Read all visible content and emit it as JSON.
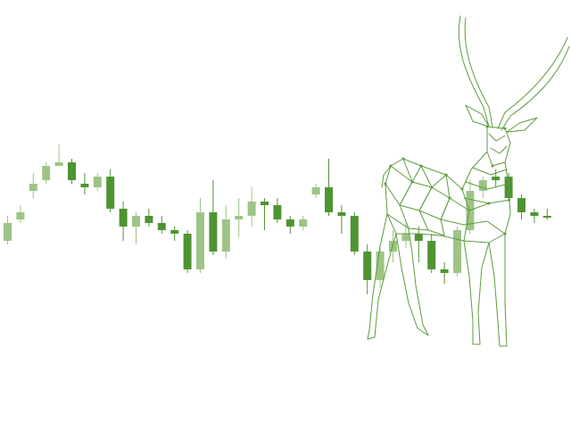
{
  "colors": {
    "background": "#ffffff",
    "dark_green": "#4f9433",
    "light_green": "#9dc486",
    "line_green": "#5c9c3c"
  },
  "illustration": {
    "icon": "antelope-wireframe-icon"
  },
  "chart_data": {
    "type": "candlestick",
    "title": "",
    "xlabel": "",
    "ylabel": "",
    "ylim": [
      0,
      100
    ],
    "grid": false,
    "legend": "none",
    "series": [
      {
        "candles": [
          {
            "o": 50,
            "c": 45,
            "h": 52,
            "l": 44,
            "style": "light"
          },
          {
            "o": 53,
            "c": 51,
            "h": 55,
            "l": 50,
            "style": "light"
          },
          {
            "o": 59,
            "c": 61,
            "h": 64,
            "l": 57,
            "style": "light"
          },
          {
            "o": 62,
            "c": 66,
            "h": 67,
            "l": 61,
            "style": "light"
          },
          {
            "o": 66,
            "c": 67,
            "h": 72,
            "l": 66,
            "style": "light"
          },
          {
            "o": 67,
            "c": 62,
            "h": 68,
            "l": 61,
            "style": "dark"
          },
          {
            "o": 61,
            "c": 60,
            "h": 64,
            "l": 58,
            "style": "dark"
          },
          {
            "o": 60,
            "c": 63,
            "h": 64,
            "l": 59,
            "style": "light"
          },
          {
            "o": 63,
            "c": 54,
            "h": 65,
            "l": 53,
            "style": "dark"
          },
          {
            "o": 54,
            "c": 49,
            "h": 56,
            "l": 45,
            "style": "dark"
          },
          {
            "o": 49,
            "c": 52,
            "h": 53,
            "l": 44,
            "style": "light"
          },
          {
            "o": 52,
            "c": 50,
            "h": 54,
            "l": 49,
            "style": "dark"
          },
          {
            "o": 50,
            "c": 48,
            "h": 52,
            "l": 47,
            "style": "dark"
          },
          {
            "o": 48,
            "c": 47,
            "h": 49,
            "l": 45,
            "style": "dark"
          },
          {
            "o": 47,
            "c": 37,
            "h": 48,
            "l": 36,
            "style": "dark"
          },
          {
            "o": 37,
            "c": 53,
            "h": 57,
            "l": 36,
            "style": "light"
          },
          {
            "o": 53,
            "c": 42,
            "h": 62,
            "l": 41,
            "style": "dark"
          },
          {
            "o": 42,
            "c": 51,
            "h": 55,
            "l": 40,
            "style": "light"
          },
          {
            "o": 51,
            "c": 52,
            "h": 57,
            "l": 46,
            "style": "light"
          },
          {
            "o": 52,
            "c": 56,
            "h": 60,
            "l": 49,
            "style": "light"
          },
          {
            "o": 56,
            "c": 55,
            "h": 57,
            "l": 48,
            "style": "dark"
          },
          {
            "o": 55,
            "c": 51,
            "h": 57,
            "l": 50,
            "style": "dark"
          },
          {
            "o": 51,
            "c": 49,
            "h": 52,
            "l": 47,
            "style": "dark"
          },
          {
            "o": 49,
            "c": 51,
            "h": 52,
            "l": 48,
            "style": "light"
          },
          {
            "o": 58,
            "c": 60,
            "h": 61,
            "l": 57,
            "style": "light"
          },
          {
            "o": 60,
            "c": 53,
            "h": 68,
            "l": 52,
            "style": "dark"
          },
          {
            "o": 53,
            "c": 52,
            "h": 55,
            "l": 47,
            "style": "dark"
          },
          {
            "o": 52,
            "c": 42,
            "h": 53,
            "l": 41,
            "style": "dark"
          },
          {
            "o": 42,
            "c": 34,
            "h": 44,
            "l": 30,
            "style": "dark"
          },
          {
            "o": 34,
            "c": 42,
            "h": 44,
            "l": 32,
            "style": "light"
          },
          {
            "o": 42,
            "c": 45,
            "h": 48,
            "l": 39,
            "style": "light"
          },
          {
            "o": 45,
            "c": 47,
            "h": 50,
            "l": 43,
            "style": "light"
          },
          {
            "o": 47,
            "c": 45,
            "h": 49,
            "l": 39,
            "style": "dark"
          },
          {
            "o": 45,
            "c": 37,
            "h": 47,
            "l": 36,
            "style": "dark"
          },
          {
            "o": 37,
            "c": 36,
            "h": 39,
            "l": 33,
            "style": "dark"
          },
          {
            "o": 36,
            "c": 48,
            "h": 49,
            "l": 35,
            "style": "light"
          },
          {
            "o": 48,
            "c": 59,
            "h": 62,
            "l": 47,
            "style": "light"
          },
          {
            "o": 59,
            "c": 62,
            "h": 63,
            "l": 57,
            "style": "light"
          },
          {
            "o": 62,
            "c": 63,
            "h": 65,
            "l": 60,
            "style": "dark"
          },
          {
            "o": 63,
            "c": 57,
            "h": 64,
            "l": 56,
            "style": "dark"
          },
          {
            "o": 57,
            "c": 53,
            "h": 58,
            "l": 51,
            "style": "dark"
          },
          {
            "o": 53,
            "c": 52,
            "h": 54,
            "l": 50,
            "style": "dark"
          },
          {
            "o": 52,
            "c": 52,
            "h": 54,
            "l": 51,
            "style": "dark"
          }
        ]
      }
    ]
  }
}
